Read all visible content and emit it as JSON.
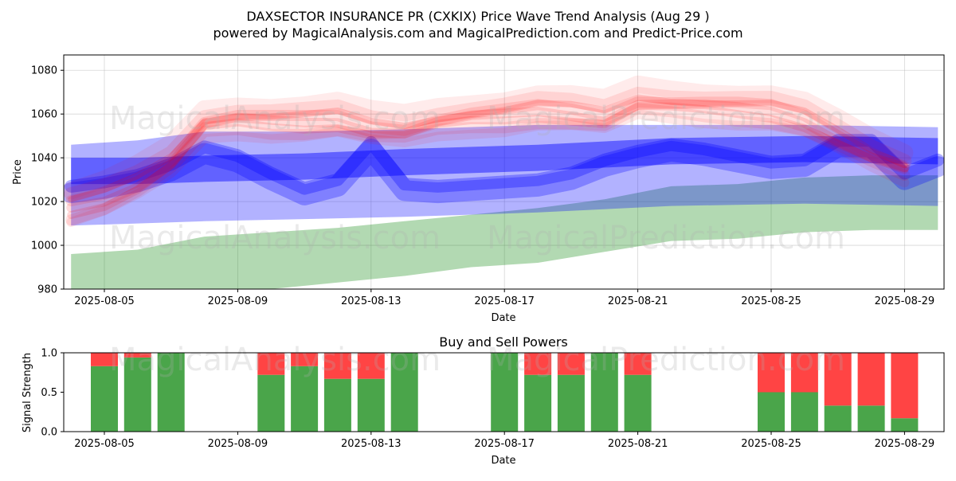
{
  "chart_data": [
    {
      "type": "area",
      "title_line1": "DAXSECTOR INSURANCE PR (CXKIX) Price Wave Trend Analysis (Aug 29 )",
      "title_line2": "powered by MagicalAnalysis.com and MagicalPrediction.com and Predict-Price.com",
      "xlabel": "Date",
      "ylabel": "Price",
      "ylim": [
        980,
        1087
      ],
      "y_ticks": [
        "980",
        "1000",
        "1020",
        "1040",
        "1060",
        "1080"
      ],
      "x_ticks": [
        "2025-08-05",
        "2025-08-09",
        "2025-08-13",
        "2025-08-17",
        "2025-08-21",
        "2025-08-25",
        "2025-08-29"
      ],
      "grid": true,
      "watermarks": [
        "MagicalAnalysis.com",
        "MagicalPrediction.com"
      ],
      "colors": {
        "red": "#ff0000",
        "blue": "#0000ff",
        "green": "#008000"
      },
      "red_center": [
        [
          "2025-08-04",
          1017
        ],
        [
          "2025-08-05",
          1021
        ],
        [
          "2025-08-06",
          1028
        ],
        [
          "2025-08-07",
          1038
        ],
        [
          "2025-08-08",
          1055
        ],
        [
          "2025-08-09",
          1057
        ],
        [
          "2025-08-10",
          1056
        ],
        [
          "2025-08-11",
          1056
        ],
        [
          "2025-08-12",
          1057
        ],
        [
          "2025-08-13",
          1053
        ],
        [
          "2025-08-14",
          1052
        ],
        [
          "2025-08-15",
          1056
        ],
        [
          "2025-08-16",
          1058
        ],
        [
          "2025-08-17",
          1059
        ],
        [
          "2025-08-18",
          1061
        ],
        [
          "2025-08-19",
          1060
        ],
        [
          "2025-08-20",
          1058
        ],
        [
          "2025-08-21",
          1065
        ],
        [
          "2025-08-22",
          1064
        ],
        [
          "2025-08-23",
          1063
        ],
        [
          "2025-08-24",
          1062
        ],
        [
          "2025-08-25",
          1061
        ],
        [
          "2025-08-26",
          1057
        ],
        [
          "2025-08-27",
          1049
        ],
        [
          "2025-08-28",
          1041
        ],
        [
          "2025-08-29",
          1035
        ]
      ],
      "blue_wave": [
        [
          "2025-08-04",
          1024
        ],
        [
          "2025-08-05",
          1026
        ],
        [
          "2025-08-06",
          1029
        ],
        [
          "2025-08-07",
          1034
        ],
        [
          "2025-08-08",
          1042
        ],
        [
          "2025-08-09",
          1038
        ],
        [
          "2025-08-10",
          1030
        ],
        [
          "2025-08-11",
          1023
        ],
        [
          "2025-08-12",
          1027
        ],
        [
          "2025-08-13",
          1044
        ],
        [
          "2025-08-14",
          1025
        ],
        [
          "2025-08-15",
          1024
        ],
        [
          "2025-08-16",
          1025
        ],
        [
          "2025-08-17",
          1026
        ],
        [
          "2025-08-18",
          1027
        ],
        [
          "2025-08-19",
          1030
        ],
        [
          "2025-08-20",
          1036
        ],
        [
          "2025-08-21",
          1040
        ],
        [
          "2025-08-22",
          1043
        ],
        [
          "2025-08-23",
          1041
        ],
        [
          "2025-08-24",
          1038
        ],
        [
          "2025-08-25",
          1035
        ],
        [
          "2025-08-26",
          1036
        ],
        [
          "2025-08-27",
          1045
        ],
        [
          "2025-08-28",
          1045
        ],
        [
          "2025-08-29",
          1030
        ],
        [
          "2025-08-30",
          1036
        ]
      ],
      "blue_channel": [
        [
          "2025-08-04",
          1009,
          1034,
          1046
        ],
        [
          "2025-08-06",
          1010,
          1034,
          1048
        ],
        [
          "2025-08-08",
          1011,
          1035,
          1052
        ],
        [
          "2025-08-11",
          1012,
          1036,
          1052
        ],
        [
          "2025-08-14",
          1013,
          1038,
          1053
        ],
        [
          "2025-08-18",
          1015,
          1040,
          1055
        ],
        [
          "2025-08-22",
          1018,
          1043,
          1055
        ],
        [
          "2025-08-26",
          1019,
          1044,
          1055
        ],
        [
          "2025-08-30",
          1018,
          1043,
          1054
        ]
      ],
      "green_band": [
        [
          "2025-08-04",
          978,
          996
        ],
        [
          "2025-08-06",
          979,
          998
        ],
        [
          "2025-08-08",
          979,
          1004
        ],
        [
          "2025-08-10",
          980,
          1006
        ],
        [
          "2025-08-12",
          983,
          1008
        ],
        [
          "2025-08-14",
          986,
          1011
        ],
        [
          "2025-08-16",
          990,
          1014
        ],
        [
          "2025-08-18",
          992,
          1017
        ],
        [
          "2025-08-20",
          997,
          1021
        ],
        [
          "2025-08-22",
          1002,
          1027
        ],
        [
          "2025-08-24",
          1003,
          1028
        ],
        [
          "2025-08-26",
          1006,
          1031
        ],
        [
          "2025-08-28",
          1007,
          1032
        ],
        [
          "2025-08-30",
          1007,
          1032
        ]
      ]
    },
    {
      "type": "bar",
      "title": "Buy and Sell Powers",
      "xlabel": "Date",
      "ylabel": "Signal Strength",
      "ylim": [
        0,
        1
      ],
      "y_ticks": [
        "0.0",
        "0.5",
        "1.0"
      ],
      "x_ticks": [
        "2025-08-05",
        "2025-08-09",
        "2025-08-13",
        "2025-08-17",
        "2025-08-21",
        "2025-08-25",
        "2025-08-29"
      ],
      "colors": {
        "buy": "#4aa54a",
        "sell": "#ff4444"
      },
      "bars": [
        {
          "date": "2025-08-05",
          "buy": 0.83
        },
        {
          "date": "2025-08-06",
          "buy": 0.94
        },
        {
          "date": "2025-08-07",
          "buy": 1.0
        },
        {
          "date": "2025-08-10",
          "buy": 0.72
        },
        {
          "date": "2025-08-11",
          "buy": 0.83
        },
        {
          "date": "2025-08-12",
          "buy": 0.67
        },
        {
          "date": "2025-08-13",
          "buy": 0.67
        },
        {
          "date": "2025-08-14",
          "buy": 1.0
        },
        {
          "date": "2025-08-17",
          "buy": 1.0
        },
        {
          "date": "2025-08-18",
          "buy": 0.72
        },
        {
          "date": "2025-08-19",
          "buy": 0.72
        },
        {
          "date": "2025-08-20",
          "buy": 1.0
        },
        {
          "date": "2025-08-21",
          "buy": 0.72
        },
        {
          "date": "2025-08-25",
          "buy": 0.5
        },
        {
          "date": "2025-08-26",
          "buy": 0.5
        },
        {
          "date": "2025-08-27",
          "buy": 0.33
        },
        {
          "date": "2025-08-28",
          "buy": 0.33
        },
        {
          "date": "2025-08-29",
          "buy": 0.17
        }
      ]
    }
  ]
}
